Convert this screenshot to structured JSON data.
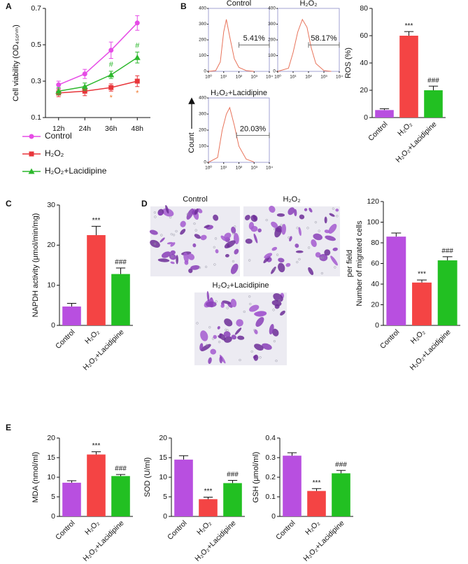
{
  "chart_data": [
    {
      "type": "line",
      "panel": "A",
      "ylabel": "Cell viability (OD₄₅₀ₙₘ)",
      "categories": [
        "12h",
        "24h",
        "36h",
        "48h"
      ],
      "ylim": [
        0.1,
        0.7
      ],
      "yticks": [
        0.1,
        0.3,
        0.5,
        0.7
      ],
      "series": [
        {
          "name": "Control",
          "color": "#e64ce6",
          "marker": "circle",
          "values": [
            0.28,
            0.34,
            0.47,
            0.62
          ],
          "errors": [
            0.02,
            0.025,
            0.045,
            0.04
          ]
        },
        {
          "name": "H₂O₂",
          "color": "#e8353a",
          "marker": "square",
          "values": [
            0.235,
            0.245,
            0.265,
            0.3
          ],
          "errors": [
            0.02,
            0.025,
            0.02,
            0.03
          ],
          "annotations": [
            null,
            null,
            "*",
            "*"
          ],
          "annotation_color": "#f07a30"
        },
        {
          "name": "H₂O₂+Lacidipine",
          "color": "#2db82d",
          "marker": "triangle",
          "values": [
            0.245,
            0.27,
            0.335,
            0.43
          ],
          "errors": [
            0.02,
            0.02,
            0.02,
            0.03
          ],
          "annotations": [
            null,
            null,
            "#",
            "#"
          ],
          "annotation_color": "#2db82d"
        }
      ]
    },
    {
      "type": "histogram-curve",
      "panel": "B",
      "title": "Control",
      "color": "#e8735a",
      "xscale": "log",
      "x": [
        1,
        3,
        6,
        10,
        15,
        25,
        50,
        100,
        300,
        1000
      ],
      "values": [
        0,
        5,
        60,
        250,
        330,
        220,
        80,
        25,
        5,
        0
      ],
      "xlim": [
        1,
        10000
      ],
      "xticks": [
        {
          "value": 1,
          "label": "10⁰"
        },
        {
          "value": 10,
          "label": "10¹"
        },
        {
          "value": 100,
          "label": "10²"
        },
        {
          "value": 1000,
          "label": "10³"
        },
        {
          "value": 10000,
          "label": "10⁴"
        }
      ],
      "ylim": [
        0,
        400
      ],
      "yticks": [
        0,
        100,
        200,
        300,
        400
      ],
      "gate": {
        "label": "5.41%",
        "range": [
          100,
          10000
        ]
      }
    },
    {
      "type": "histogram-curve",
      "title": "H₂O₂",
      "color": "#e8735a",
      "xscale": "log",
      "x": [
        1,
        5,
        10,
        20,
        40,
        80,
        150,
        300,
        1000,
        3000
      ],
      "values": [
        0,
        20,
        120,
        250,
        330,
        280,
        150,
        50,
        5,
        0
      ],
      "xlim": [
        1,
        10000
      ],
      "xticks": [
        {
          "value": 1,
          "label": "10⁰"
        },
        {
          "value": 10,
          "label": "10¹"
        },
        {
          "value": 100,
          "label": "10²"
        },
        {
          "value": 1000,
          "label": "10³"
        },
        {
          "value": 10000,
          "label": "10⁴"
        }
      ],
      "ylim": [
        0,
        400
      ],
      "yticks": [
        0,
        100,
        200,
        300,
        400
      ],
      "gate": {
        "label": "58.17%",
        "range": [
          100,
          10000
        ]
      }
    },
    {
      "type": "histogram-curve",
      "title": "H₂O₂+Lacidipine",
      "ylabel": "Count",
      "color": "#e8735a",
      "xscale": "log",
      "x": [
        1,
        4,
        8,
        15,
        25,
        50,
        100,
        300,
        1000
      ],
      "values": [
        0,
        30,
        200,
        300,
        340,
        230,
        100,
        20,
        2
      ],
      "xlim": [
        1,
        10000
      ],
      "xticks": [
        {
          "value": 1,
          "label": "10⁰"
        },
        {
          "value": 10,
          "label": "10¹"
        },
        {
          "value": 100,
          "label": "10²"
        },
        {
          "value": 1000,
          "label": "10³"
        },
        {
          "value": 10000,
          "label": "10⁴"
        }
      ],
      "ylim": [
        0,
        400
      ],
      "yticks": [
        0,
        100,
        200,
        300,
        400
      ],
      "gate": {
        "label": "20.03%",
        "range": [
          70,
          10000
        ]
      }
    },
    {
      "type": "bar",
      "ylabel": "ROS (%)",
      "categories": [
        "Control",
        "H₂O₂",
        "H₂O₂+Lacidipine"
      ],
      "colors": [
        "#b84fe0",
        "#f44444",
        "#22c022"
      ],
      "values": [
        5.5,
        60,
        20
      ],
      "errors": [
        1,
        3,
        3
      ],
      "annotations": [
        null,
        "***",
        "###"
      ],
      "ylim": [
        0,
        80
      ],
      "yticks": [
        0,
        20,
        40,
        60,
        80
      ]
    },
    {
      "type": "bar",
      "panel": "C",
      "ylabel": "NAPDH activity (μmol/min/mg)",
      "categories": [
        "Control",
        "H₂O₂",
        "H₂O₂+Lacidipine"
      ],
      "colors": [
        "#b84fe0",
        "#f44444",
        "#22c022"
      ],
      "values": [
        4.7,
        22.5,
        12.8
      ],
      "errors": [
        0.8,
        2.2,
        1.5
      ],
      "annotations": [
        null,
        "***",
        "###"
      ],
      "ylim": [
        0,
        30
      ],
      "yticks": [
        0,
        10,
        20,
        30
      ]
    },
    {
      "type": "bar",
      "ylabel": [
        "Number of migrated cells",
        "per field"
      ],
      "categories": [
        "Control",
        "H₂O₂",
        "H₂O₂+Lacidipine"
      ],
      "colors": [
        "#b84fe0",
        "#f44444",
        "#22c022"
      ],
      "values": [
        86,
        41.5,
        63
      ],
      "errors": [
        3.5,
        2.5,
        3.5
      ],
      "annotations": [
        null,
        "***",
        "###"
      ],
      "ylim": [
        0,
        120
      ],
      "yticks": [
        0,
        20,
        40,
        60,
        80,
        100,
        120
      ]
    },
    {
      "type": "bar",
      "panel": "E",
      "ylabel": "MDA (nmol/ml)",
      "categories": [
        "Control",
        "H₂O₂",
        "H₂O₂+Lacidipine"
      ],
      "colors": [
        "#b84fe0",
        "#f44444",
        "#22c022"
      ],
      "values": [
        8.6,
        15.8,
        10.3
      ],
      "errors": [
        0.5,
        0.7,
        0.4
      ],
      "annotations": [
        null,
        "***",
        "###"
      ],
      "ylim": [
        0,
        20
      ],
      "yticks": [
        0,
        5,
        10,
        15,
        20
      ]
    },
    {
      "type": "bar",
      "ylabel": "SOD (U/ml)",
      "categories": [
        "Control",
        "H₂O₂",
        "H₂O₂+Lacidipine"
      ],
      "colors": [
        "#b84fe0",
        "#f44444",
        "#22c022"
      ],
      "values": [
        14.5,
        4.4,
        8.5
      ],
      "errors": [
        1,
        0.5,
        0.7
      ],
      "annotations": [
        null,
        "***",
        "###"
      ],
      "ylim": [
        0,
        20
      ],
      "yticks": [
        0,
        5,
        10,
        15,
        20
      ]
    },
    {
      "type": "bar",
      "ylabel": "GSH (μmol/ml)",
      "categories": [
        "Control",
        "H₂O₂",
        "H₂O₂+Lacidipine"
      ],
      "colors": [
        "#b84fe0",
        "#f44444",
        "#22c022"
      ],
      "values": [
        0.31,
        0.13,
        0.22
      ],
      "errors": [
        0.015,
        0.012,
        0.015
      ],
      "annotations": [
        null,
        "***",
        "###"
      ],
      "ylim": [
        0,
        0.4
      ],
      "yticks": [
        0,
        0.1,
        0.2,
        0.3,
        0.4
      ]
    }
  ],
  "micrographs": {
    "panel": "D",
    "labels": [
      "Control",
      "H₂O₂",
      "H₂O₂+Lacidipine"
    ]
  }
}
